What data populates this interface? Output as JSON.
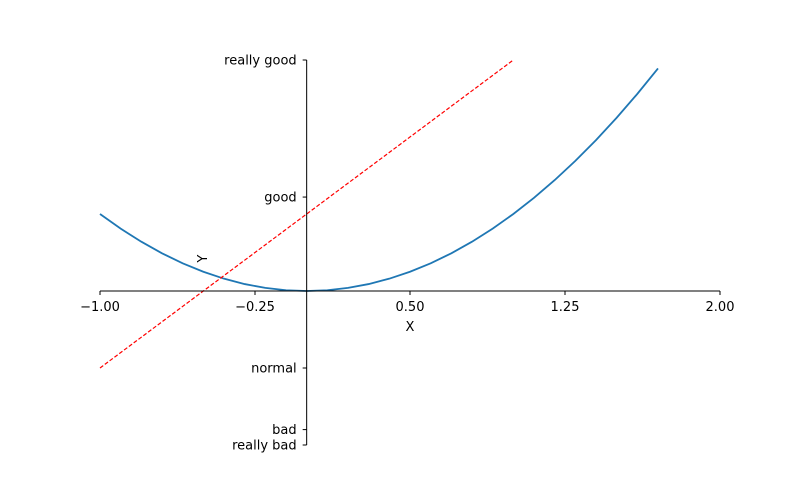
{
  "chart_data": {
    "type": "line",
    "title": "",
    "xlabel": "X",
    "ylabel": "Y",
    "xlim": [
      -1.0,
      2.0
    ],
    "ylim": [
      -2.0,
      3.0
    ],
    "grid": false,
    "x_ticks": [
      {
        "value": -1.0,
        "label": "−1.00"
      },
      {
        "value": -0.25,
        "label": "−0.25"
      },
      {
        "value": 0.5,
        "label": "0.50"
      },
      {
        "value": 1.25,
        "label": "1.25"
      },
      {
        "value": 2.0,
        "label": "2.00"
      }
    ],
    "y_ticks": [
      {
        "value": -2.0,
        "label": "really bad"
      },
      {
        "value": -1.8,
        "label": "bad"
      },
      {
        "value": -1.0,
        "label": "normal"
      },
      {
        "value": 1.22,
        "label": "good"
      },
      {
        "value": 3.0,
        "label": "really good"
      }
    ],
    "series": [
      {
        "style": "solid",
        "color": "#1f77b4",
        "x": [
          -1.0,
          -0.9,
          -0.8,
          -0.7,
          -0.6,
          -0.5,
          -0.4,
          -0.3,
          -0.2,
          -0.1,
          0.0,
          0.1,
          0.2,
          0.3,
          0.4,
          0.5,
          0.6,
          0.7,
          0.8,
          0.9,
          1.0,
          1.1,
          1.2,
          1.3,
          1.4,
          1.5,
          1.6,
          1.7
        ],
        "y": [
          1.0,
          0.81,
          0.64,
          0.49,
          0.36,
          0.25,
          0.16,
          0.09,
          0.04,
          0.01,
          0.0,
          0.01,
          0.04,
          0.09,
          0.16,
          0.25,
          0.36,
          0.49,
          0.64,
          0.81,
          1.0,
          1.21,
          1.44,
          1.69,
          1.96,
          2.25,
          2.56,
          2.89
        ]
      },
      {
        "style": "dashed",
        "color": "#ff0000",
        "x": [
          -1.0,
          1.0
        ],
        "y": [
          -1.0,
          3.0
        ]
      }
    ]
  }
}
